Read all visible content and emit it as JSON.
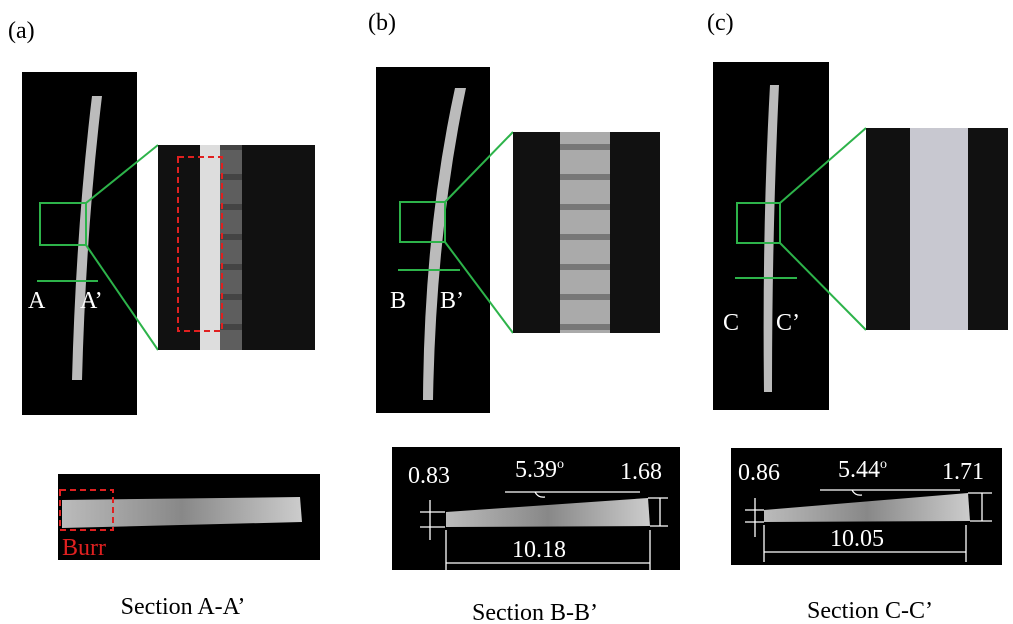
{
  "panels": [
    {
      "label": "(a)",
      "left_mark": "A",
      "right_mark": "A’",
      "section_title": "Section A-A’",
      "defect_label": "Burr"
    },
    {
      "label": "(b)",
      "left_mark": "B",
      "right_mark": "B’",
      "section_title": "Section B-B’",
      "dimensions": {
        "left_height": "0.83",
        "angle": "5.39",
        "angle_unit": "o",
        "right_height": "1.68",
        "width": "10.18"
      }
    },
    {
      "label": "(c)",
      "left_mark": "C",
      "right_mark": "C’",
      "section_title": "Section C-C’",
      "dimensions": {
        "left_height": "0.86",
        "angle": "5.44",
        "angle_unit": "o",
        "right_height": "1.71",
        "width": "10.05"
      }
    }
  ]
}
